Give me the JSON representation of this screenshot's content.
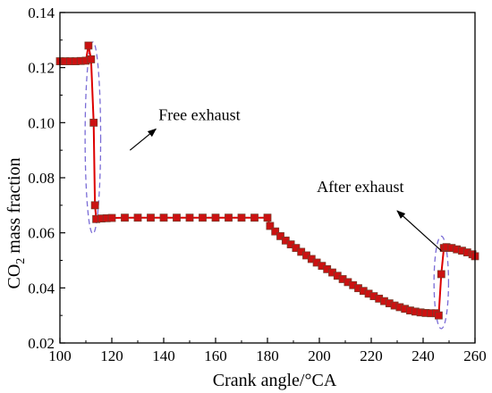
{
  "chart_data": {
    "type": "line",
    "xlabel": "Crank angle/°CA",
    "ylabel_main": "CO",
    "ylabel_sub": "2",
    "ylabel_rest": " mass fraction",
    "xlim": [
      100,
      260
    ],
    "ylim": [
      0.02,
      0.14
    ],
    "x_ticks": [
      "100",
      "120",
      "140",
      "160",
      "180",
      "200",
      "220",
      "240",
      "260"
    ],
    "y_ticks": [
      "0.02",
      "0.04",
      "0.06",
      "0.08",
      "0.10",
      "0.12",
      "0.14"
    ],
    "grid": false,
    "colors": {
      "series": "#dd0000",
      "marker": "#cc1111",
      "marker_edge": "#7a3a2a",
      "ellipse": "#7a6cd6"
    },
    "series": [
      {
        "marker": "square",
        "x": [
          100,
          102,
          104,
          106,
          108,
          110,
          111,
          112,
          113,
          113.5,
          114,
          116,
          118,
          120,
          125,
          130,
          135,
          140,
          145,
          150,
          155,
          160,
          165,
          170,
          175,
          180,
          181,
          183,
          185,
          187,
          189,
          191,
          193,
          195,
          197,
          199,
          201,
          203,
          205,
          207,
          209,
          211,
          213,
          215,
          217,
          219,
          221,
          223,
          225,
          227,
          229,
          231,
          233,
          235,
          237,
          239,
          241,
          243,
          245,
          246,
          247,
          248,
          249,
          251,
          253,
          255,
          257,
          259,
          260
        ],
        "y": [
          0.1223,
          0.1223,
          0.1223,
          0.1223,
          0.1224,
          0.1225,
          0.128,
          0.123,
          0.1,
          0.07,
          0.065,
          0.0652,
          0.0653,
          0.0654,
          0.0655,
          0.0655,
          0.0655,
          0.0655,
          0.0655,
          0.0655,
          0.0655,
          0.0655,
          0.0655,
          0.0655,
          0.0655,
          0.0655,
          0.0625,
          0.0605,
          0.0588,
          0.0572,
          0.0558,
          0.0545,
          0.0531,
          0.0518,
          0.0505,
          0.0492,
          0.048,
          0.0468,
          0.0456,
          0.0444,
          0.0432,
          0.0421,
          0.041,
          0.0399,
          0.0389,
          0.0379,
          0.037,
          0.0361,
          0.0352,
          0.0344,
          0.0336,
          0.033,
          0.0324,
          0.0318,
          0.0314,
          0.0311,
          0.0309,
          0.0308,
          0.0308,
          0.03,
          0.045,
          0.0545,
          0.0548,
          0.0545,
          0.054,
          0.0535,
          0.0529,
          0.0522,
          0.0515
        ]
      }
    ],
    "annotations": [
      {
        "id": "free",
        "text": "Free exhaust",
        "tail": [
          127,
          0.09
        ],
        "head": [
          137,
          0.0977
        ],
        "text_at": [
          138,
          0.101
        ],
        "ellipse": {
          "cx": 112.7,
          "cy": 0.0945,
          "rx": 3.0,
          "ry": 0.0348
        }
      },
      {
        "id": "after",
        "text": "After exhaust",
        "tail": [
          247,
          0.0535
        ],
        "head": [
          230,
          0.068
        ],
        "text_at": [
          199,
          0.0748
        ],
        "ellipse": {
          "cx": 247,
          "cy": 0.042,
          "rx": 2.8,
          "ry": 0.0168
        }
      }
    ]
  }
}
